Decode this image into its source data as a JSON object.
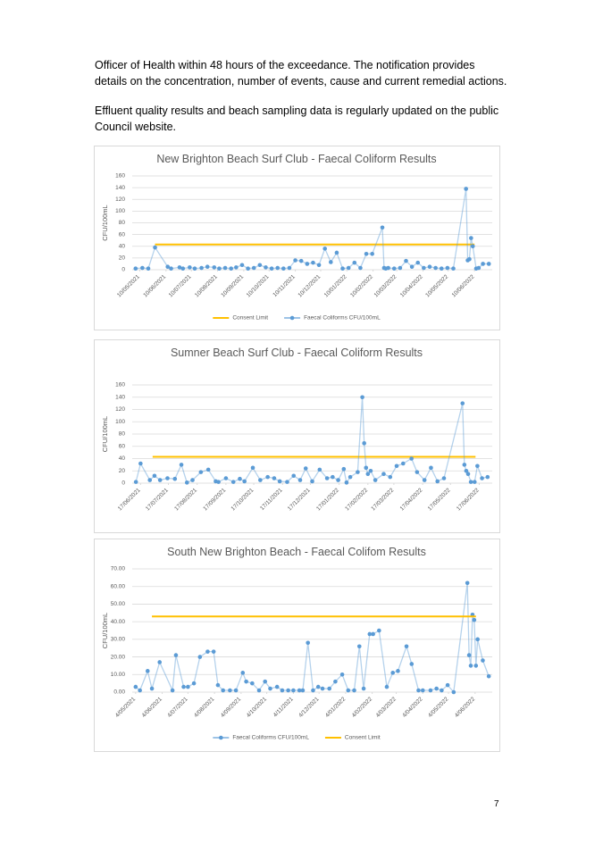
{
  "paragraphs": [
    "Officer of Health within 48 hours of the exceedance. The notification provides details on the concentration, number of events, cause and current remedial actions.",
    "Effluent quality results and beach sampling data is regularly updated on the public Council website."
  ],
  "page_number": "7",
  "chart_data": [
    {
      "type": "line",
      "title": "New Brighton Beach Surf Club - Faecal Coliform Results",
      "y_label": "CFU/100mL",
      "grid": true,
      "xlim": [
        "2021-05-01",
        "2022-07-01"
      ],
      "xticks": [
        {
          "value": "2021-05-10",
          "label": "10/05/2021"
        },
        {
          "value": "2021-06-10",
          "label": "10/06/2021"
        },
        {
          "value": "2021-07-10",
          "label": "10/07/2021"
        },
        {
          "value": "2021-08-10",
          "label": "10/08/2021"
        },
        {
          "value": "2021-09-10",
          "label": "10/09/2021"
        },
        {
          "value": "2021-10-10",
          "label": "10/10/2021"
        },
        {
          "value": "2021-11-10",
          "label": "10/11/2021"
        },
        {
          "value": "2021-12-10",
          "label": "10/12/2021"
        },
        {
          "value": "2022-01-10",
          "label": "10/01/2022"
        },
        {
          "value": "2022-02-10",
          "label": "10/02/2022"
        },
        {
          "value": "2022-03-10",
          "label": "10/03/2022"
        },
        {
          "value": "2022-04-10",
          "label": "10/04/2022"
        },
        {
          "value": "2022-05-10",
          "label": "10/05/2022"
        },
        {
          "value": "2022-06-10",
          "label": "10/06/2022"
        }
      ],
      "ylim": [
        0,
        160
      ],
      "yticks": [
        0,
        20,
        40,
        60,
        80,
        100,
        120,
        140,
        160
      ],
      "series": [
        {
          "name": "Consent Limit",
          "color": "#ffc000",
          "x": [
            "2021-05-28",
            "2022-06-10"
          ],
          "values": [
            43,
            43
          ]
        },
        {
          "name": "Faecal Coliforms CFU/100mL",
          "color": "#5b9bd5",
          "marker": true,
          "x": [
            "2021-05-05",
            "2021-05-13",
            "2021-05-20",
            "2021-05-28",
            "2021-06-12",
            "2021-06-16",
            "2021-06-26",
            "2021-06-30",
            "2021-07-08",
            "2021-07-14",
            "2021-07-22",
            "2021-07-29",
            "2021-08-06",
            "2021-08-12",
            "2021-08-19",
            "2021-08-26",
            "2021-09-01",
            "2021-09-08",
            "2021-09-15",
            "2021-09-22",
            "2021-09-29",
            "2021-10-06",
            "2021-10-13",
            "2021-10-20",
            "2021-10-27",
            "2021-11-03",
            "2021-11-10",
            "2021-11-17",
            "2021-11-24",
            "2021-12-01",
            "2021-12-08",
            "2021-12-15",
            "2021-12-22",
            "2021-12-29",
            "2022-01-05",
            "2022-01-12",
            "2022-01-19",
            "2022-01-26",
            "2022-02-02",
            "2022-02-09",
            "2022-02-21",
            "2022-02-23",
            "2022-02-25",
            "2022-02-28",
            "2022-03-07",
            "2022-03-14",
            "2022-03-21",
            "2022-03-28",
            "2022-04-04",
            "2022-04-11",
            "2022-04-18",
            "2022-04-25",
            "2022-05-02",
            "2022-05-09",
            "2022-05-16",
            "2022-05-31",
            "2022-06-02",
            "2022-06-04",
            "2022-06-06",
            "2022-06-08",
            "2022-06-12",
            "2022-06-15",
            "2022-06-20",
            "2022-06-27"
          ],
          "values": [
            2,
            3,
            2,
            38,
            5,
            2,
            4,
            2,
            4,
            2,
            3,
            5,
            4,
            2,
            3,
            2,
            4,
            8,
            2,
            3,
            8,
            4,
            2,
            3,
            2,
            3,
            16,
            15,
            10,
            12,
            8,
            36,
            13,
            29,
            2,
            3,
            12,
            3,
            27,
            27,
            72,
            3,
            2,
            3,
            2,
            3,
            15,
            5,
            12,
            3,
            5,
            3,
            2,
            3,
            2,
            138,
            16,
            18,
            54,
            40,
            2,
            3,
            10,
            10
          ]
        }
      ]
    },
    {
      "type": "line",
      "title": "Sumner Beach Surf Club - Faecal Coliform Results",
      "y_label": "CFU/100mL",
      "grid": true,
      "xlim": [
        "2021-06-08",
        "2022-07-01"
      ],
      "xticks": [
        {
          "value": "2021-06-17",
          "label": "17/06/2021"
        },
        {
          "value": "2021-07-17",
          "label": "17/07/2021"
        },
        {
          "value": "2021-08-17",
          "label": "17/08/2021"
        },
        {
          "value": "2021-09-17",
          "label": "17/09/2021"
        },
        {
          "value": "2021-10-17",
          "label": "17/10/2021"
        },
        {
          "value": "2021-11-17",
          "label": "17/11/2021"
        },
        {
          "value": "2021-12-17",
          "label": "17/12/2021"
        },
        {
          "value": "2022-01-17",
          "label": "17/01/2022"
        },
        {
          "value": "2022-02-17",
          "label": "17/02/2022"
        },
        {
          "value": "2022-03-17",
          "label": "17/03/2022"
        },
        {
          "value": "2022-04-17",
          "label": "17/04/2022"
        },
        {
          "value": "2022-05-17",
          "label": "17/05/2022"
        },
        {
          "value": "2022-06-17",
          "label": "17/06/2022"
        }
      ],
      "ylim": [
        0,
        160
      ],
      "yticks": [
        0,
        20,
        40,
        60,
        80,
        100,
        120,
        140,
        160
      ],
      "series": [
        {
          "color": "#ffc000",
          "x": [
            "2021-06-30",
            "2022-06-13"
          ],
          "values": [
            43,
            43
          ]
        },
        {
          "color": "#5b9bd5",
          "marker": true,
          "x": [
            "2021-06-12",
            "2021-06-17",
            "2021-06-27",
            "2021-07-02",
            "2021-07-08",
            "2021-07-16",
            "2021-07-24",
            "2021-07-31",
            "2021-08-06",
            "2021-08-12",
            "2021-08-21",
            "2021-08-29",
            "2021-09-06",
            "2021-09-09",
            "2021-09-17",
            "2021-09-25",
            "2021-10-02",
            "2021-10-07",
            "2021-10-16",
            "2021-10-24",
            "2021-11-01",
            "2021-11-08",
            "2021-11-14",
            "2021-11-22",
            "2021-11-29",
            "2021-12-06",
            "2021-12-12",
            "2021-12-19",
            "2021-12-27",
            "2022-01-04",
            "2022-01-10",
            "2022-01-16",
            "2022-01-22",
            "2022-01-25",
            "2022-01-29",
            "2022-02-06",
            "2022-02-11",
            "2022-02-13",
            "2022-02-15",
            "2022-02-17",
            "2022-02-20",
            "2022-02-25",
            "2022-03-06",
            "2022-03-13",
            "2022-03-20",
            "2022-03-27",
            "2022-04-05",
            "2022-04-11",
            "2022-04-19",
            "2022-04-26",
            "2022-05-03",
            "2022-05-10",
            "2022-05-30",
            "2022-06-01",
            "2022-06-03",
            "2022-06-05",
            "2022-06-08",
            "2022-06-12",
            "2022-06-15",
            "2022-06-20",
            "2022-06-26"
          ],
          "values": [
            2,
            32,
            5,
            12,
            5,
            8,
            7,
            30,
            1,
            5,
            18,
            22,
            3,
            2,
            8,
            2,
            7,
            3,
            25,
            5,
            10,
            8,
            3,
            2,
            12,
            5,
            24,
            3,
            22,
            8,
            10,
            5,
            23,
            1,
            10,
            18,
            140,
            65,
            25,
            15,
            20,
            5,
            15,
            10,
            28,
            32,
            40,
            18,
            5,
            25,
            3,
            8,
            130,
            30,
            20,
            15,
            2,
            2,
            28,
            8,
            10
          ]
        }
      ]
    },
    {
      "type": "line",
      "title": "South New Brighton Beach - Faecal Colifom Results",
      "y_label": "CFU/100mL",
      "grid": true,
      "xlim": [
        "2021-04-30",
        "2022-06-24"
      ],
      "xticks": [
        {
          "value": "2021-05-04",
          "label": "4/05/2021"
        },
        {
          "value": "2021-06-04",
          "label": "4/06/2021"
        },
        {
          "value": "2021-07-04",
          "label": "4/07/2021"
        },
        {
          "value": "2021-08-04",
          "label": "4/08/2021"
        },
        {
          "value": "2021-09-04",
          "label": "4/09/2021"
        },
        {
          "value": "2021-10-04",
          "label": "4/10/2021"
        },
        {
          "value": "2021-11-04",
          "label": "4/11/2021"
        },
        {
          "value": "2021-12-04",
          "label": "4/12/2021"
        },
        {
          "value": "2022-01-04",
          "label": "4/01/2022"
        },
        {
          "value": "2022-02-04",
          "label": "4/02/2022"
        },
        {
          "value": "2022-03-04",
          "label": "4/03/2022"
        },
        {
          "value": "2022-04-04",
          "label": "4/04/2022"
        },
        {
          "value": "2022-05-04",
          "label": "4/05/2022"
        },
        {
          "value": "2022-06-04",
          "label": "4/06/2022"
        }
      ],
      "ylim": [
        0,
        70
      ],
      "yticks": [
        {
          "value": 0,
          "label": "0.00"
        },
        {
          "value": 10,
          "label": "10.00"
        },
        {
          "value": 20,
          "label": "20.00"
        },
        {
          "value": 30,
          "label": "30.00"
        },
        {
          "value": 40,
          "label": "40.00"
        },
        {
          "value": 50,
          "label": "50.00"
        },
        {
          "value": 60,
          "label": "60.00"
        },
        {
          "value": 70,
          "label": "70.00"
        }
      ],
      "series": [
        {
          "name": "Faecal Coliforms CFU/100mL",
          "color": "#5b9bd5",
          "marker": true,
          "x": [
            "2021-05-04",
            "2021-05-09",
            "2021-05-18",
            "2021-05-23",
            "2021-06-01",
            "2021-06-16",
            "2021-06-20",
            "2021-06-29",
            "2021-07-04",
            "2021-07-11",
            "2021-07-18",
            "2021-07-27",
            "2021-08-03",
            "2021-08-08",
            "2021-08-14",
            "2021-08-22",
            "2021-08-29",
            "2021-09-06",
            "2021-09-10",
            "2021-09-17",
            "2021-09-25",
            "2021-10-02",
            "2021-10-08",
            "2021-10-16",
            "2021-10-22",
            "2021-10-29",
            "2021-11-04",
            "2021-11-11",
            "2021-11-15",
            "2021-11-21",
            "2021-11-27",
            "2021-12-03",
            "2021-12-08",
            "2021-12-16",
            "2021-12-23",
            "2021-12-31",
            "2022-01-07",
            "2022-01-14",
            "2022-01-20",
            "2022-01-25",
            "2022-02-01",
            "2022-02-05",
            "2022-02-12",
            "2022-02-21",
            "2022-02-28",
            "2022-03-06",
            "2022-03-16",
            "2022-03-22",
            "2022-03-30",
            "2022-04-04",
            "2022-04-13",
            "2022-04-20",
            "2022-04-26",
            "2022-05-03",
            "2022-05-10",
            "2022-05-26",
            "2022-05-28",
            "2022-05-30",
            "2022-06-01",
            "2022-06-03",
            "2022-06-05",
            "2022-06-07",
            "2022-06-13",
            "2022-06-20"
          ],
          "values": [
            3,
            1,
            12,
            2,
            17,
            1,
            21,
            3,
            3,
            5,
            20,
            23,
            23,
            4,
            1,
            1,
            1,
            11,
            6,
            5,
            1,
            6,
            2,
            3,
            1,
            1,
            1,
            1,
            1,
            28,
            1,
            3,
            2,
            2,
            6,
            10,
            1,
            1,
            26,
            2,
            33,
            33,
            35,
            3,
            11,
            12,
            26,
            16,
            1,
            1,
            1,
            2,
            1,
            4,
            0,
            62,
            21,
            15,
            44,
            41,
            15,
            30,
            18,
            9
          ]
        },
        {
          "name": "Consent Limit",
          "color": "#ffc000",
          "x": [
            "2021-05-23",
            "2022-06-05"
          ],
          "values": [
            43,
            43
          ]
        }
      ]
    }
  ]
}
